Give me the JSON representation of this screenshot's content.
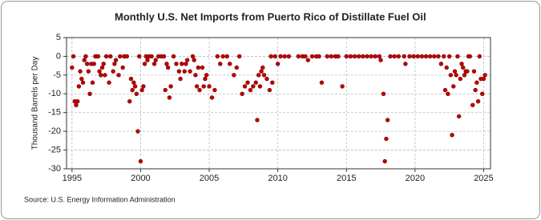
{
  "chart_data": {
    "type": "scatter",
    "title": "Monthly U.S. Net Imports from Puerto Rico of Distillate Fuel Oil",
    "y_label": "Thousand Barrels per Day",
    "source": "Source: U.S. Energy Information Administration",
    "color": "#c00000",
    "grid": true,
    "xlim": [
      1994.6,
      2025.5
    ],
    "ylim": [
      -30,
      5
    ],
    "xticks": [
      1995,
      2000,
      2005,
      2010,
      2015,
      2020,
      2025
    ],
    "yticks": [
      5,
      0,
      -5,
      -10,
      -15,
      -20,
      -25,
      -30
    ],
    "x": [
      1995.0,
      1995.1,
      1995.2,
      1995.3,
      1995.4,
      1995.5,
      1995.6,
      1995.7,
      1995.8,
      1995.9,
      1996.0,
      1996.1,
      1996.2,
      1996.3,
      1996.4,
      1996.5,
      1996.6,
      1996.7,
      1996.8,
      1996.9,
      1997.0,
      1997.1,
      1997.2,
      1997.3,
      1997.4,
      1997.5,
      1997.7,
      1997.8,
      1998.0,
      1998.1,
      1998.2,
      1998.4,
      1998.5,
      1998.7,
      1998.8,
      1999.0,
      1999.2,
      1999.3,
      1999.4,
      1999.5,
      1999.6,
      1999.7,
      1999.8,
      1999.9,
      2000.0,
      2000.1,
      2000.2,
      2000.3,
      2000.4,
      2000.5,
      2000.6,
      2000.8,
      2001.0,
      2001.1,
      2001.3,
      2001.5,
      2001.7,
      2001.8,
      2001.9,
      2002.0,
      2002.1,
      2002.2,
      2002.4,
      2002.6,
      2002.8,
      2002.9,
      2003.0,
      2003.2,
      2003.3,
      2003.4,
      2003.6,
      2003.8,
      2003.9,
      2004.0,
      2004.1,
      2004.2,
      2004.3,
      2004.5,
      2004.6,
      2004.7,
      2004.8,
      2005.0,
      2005.2,
      2005.4,
      2005.6,
      2005.8,
      2006.0,
      2006.3,
      2006.5,
      2006.8,
      2007.0,
      2007.2,
      2007.4,
      2007.6,
      2007.8,
      2008.0,
      2008.2,
      2008.4,
      2008.5,
      2008.6,
      2008.7,
      2008.8,
      2008.9,
      2009.0,
      2009.2,
      2009.4,
      2009.5,
      2009.6,
      2009.8,
      2010.0,
      2010.2,
      2010.5,
      2010.8,
      2011.5,
      2011.8,
      2012.0,
      2012.2,
      2012.5,
      2012.8,
      2013.0,
      2013.2,
      2013.6,
      2013.9,
      2014.2,
      2014.4,
      2014.7,
      2015.0,
      2015.3,
      2015.6,
      2015.9,
      2016.2,
      2016.5,
      2016.8,
      2017.1,
      2017.4,
      2017.5,
      2017.7,
      2017.8,
      2017.9,
      2018.0,
      2018.2,
      2018.5,
      2018.8,
      2019.2,
      2019.3,
      2019.6,
      2019.9,
      2020.2,
      2020.5,
      2020.8,
      2021.1,
      2021.4,
      2021.7,
      2021.9,
      2022.1,
      2022.2,
      2022.3,
      2022.4,
      2022.5,
      2022.6,
      2022.7,
      2022.8,
      2022.9,
      2023.0,
      2023.1,
      2023.2,
      2023.3,
      2023.4,
      2023.5,
      2023.6,
      2023.7,
      2023.8,
      2023.9,
      2024.0,
      2024.2,
      2024.3,
      2024.4,
      2024.5,
      2024.6,
      2024.7,
      2024.8,
      2024.9,
      2025.0,
      2025.1
    ],
    "values": [
      -3,
      0,
      -12,
      -13,
      -12,
      -8,
      -4,
      -6,
      -7,
      -1,
      0,
      -2,
      -4,
      -10,
      -2,
      -7,
      -2,
      0,
      0,
      0,
      -4,
      -5,
      -3,
      -2,
      -5,
      0,
      -7,
      0,
      -4,
      -2,
      -1,
      -5,
      0,
      -3,
      0,
      0,
      -12,
      -6,
      -9,
      -7,
      -8,
      -10,
      -20,
      0,
      -28,
      -9,
      -8,
      -2,
      0,
      -1,
      0,
      0,
      -2,
      -1,
      0,
      0,
      0,
      -9,
      -2,
      -3,
      -11,
      -8,
      0,
      -2,
      -4,
      -6,
      -2,
      -4,
      -2,
      -1,
      -4,
      0,
      -1,
      -5,
      -8,
      -3,
      -9,
      -3,
      -8,
      -6,
      -5,
      -8,
      -11,
      -9,
      0,
      -2,
      0,
      0,
      -2,
      -5,
      -3,
      0,
      -10,
      -8,
      -7,
      -9,
      -8,
      -7,
      -17,
      -5,
      -8,
      -4,
      -3,
      -5,
      -6,
      -9,
      0,
      -7,
      0,
      -2,
      0,
      0,
      0,
      0,
      0,
      0,
      -1,
      0,
      0,
      0,
      -7,
      0,
      0,
      0,
      0,
      -8,
      0,
      0,
      0,
      0,
      0,
      0,
      0,
      0,
      0,
      -1,
      -10,
      -28,
      -22,
      -17,
      0,
      0,
      0,
      0,
      -2,
      0,
      0,
      0,
      0,
      0,
      0,
      0,
      0,
      -2,
      0,
      -9,
      -3,
      -10,
      0,
      -5,
      -21,
      -8,
      -4,
      -5,
      0,
      -16,
      -6,
      -2,
      -3,
      -5,
      -4,
      -4,
      0,
      0,
      -13,
      -4,
      -9,
      -7,
      -12,
      0,
      -6,
      -10,
      -6,
      -5
    ]
  }
}
